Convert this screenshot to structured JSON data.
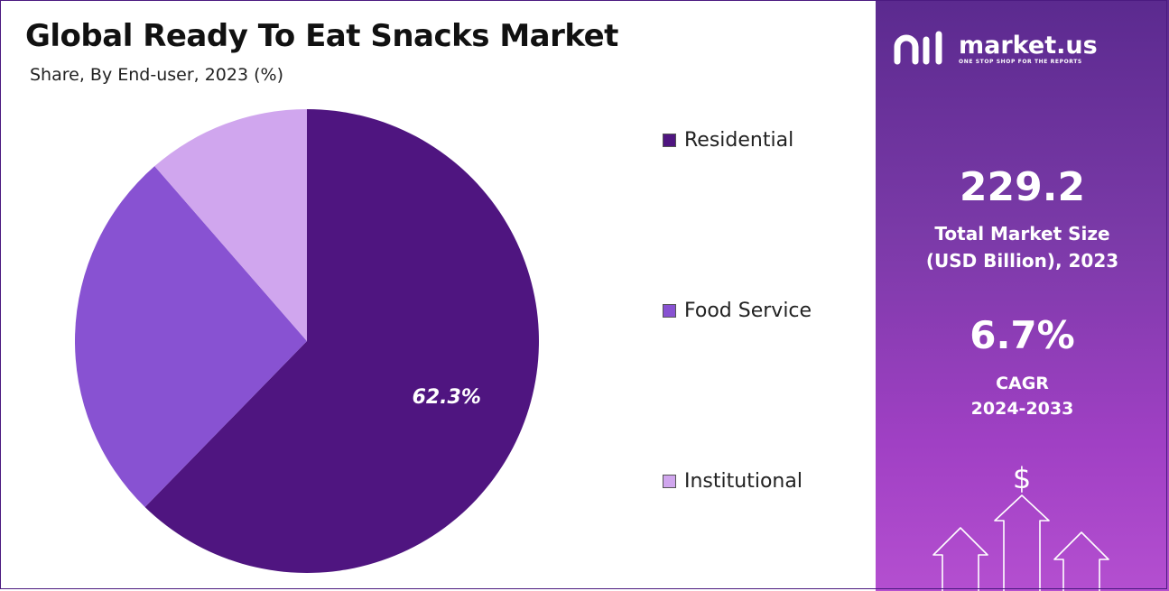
{
  "title": "Global Ready To Eat Snacks Market",
  "subtitle": "Share, By End-user, 2023 (%)",
  "chart_data": {
    "type": "pie",
    "title": "Global Ready To Eat Snacks Market",
    "subtitle": "Share, By End-user, 2023 (%)",
    "slices": [
      {
        "name": "Residential",
        "value": 62.3,
        "label": "62.3%",
        "color": "#4f1580"
      },
      {
        "name": "Food Service",
        "value": 26.3,
        "label": "",
        "color": "#8852d2"
      },
      {
        "name": "Institutional",
        "value": 11.4,
        "label": "",
        "color": "#d0a6ee"
      }
    ],
    "legend_position": "right"
  },
  "legend": [
    {
      "label": "Residential",
      "color": "#4f1580"
    },
    {
      "label": "Food Service",
      "color": "#8852d2"
    },
    {
      "label": "Institutional",
      "color": "#d0a6ee"
    }
  ],
  "brand": {
    "name": "market.us",
    "tagline": "ONE STOP SHOP FOR THE REPORTS"
  },
  "stats": {
    "market_size_value": "229.2",
    "market_size_label_line1": "Total Market Size",
    "market_size_label_line2": "(USD Billion), 2023",
    "cagr_value": "6.7%",
    "cagr_label_line1": "CAGR",
    "cagr_label_line2": "2024-2033"
  },
  "decor": {
    "dollar_symbol": "$",
    "icon_names": [
      "market-us-logo-icon",
      "dollar-icon",
      "up-arrow-icon"
    ]
  },
  "colors": {
    "panel_top": "#5b2a8f",
    "panel_bottom": "#b44fd0",
    "title_text": "#111111"
  }
}
